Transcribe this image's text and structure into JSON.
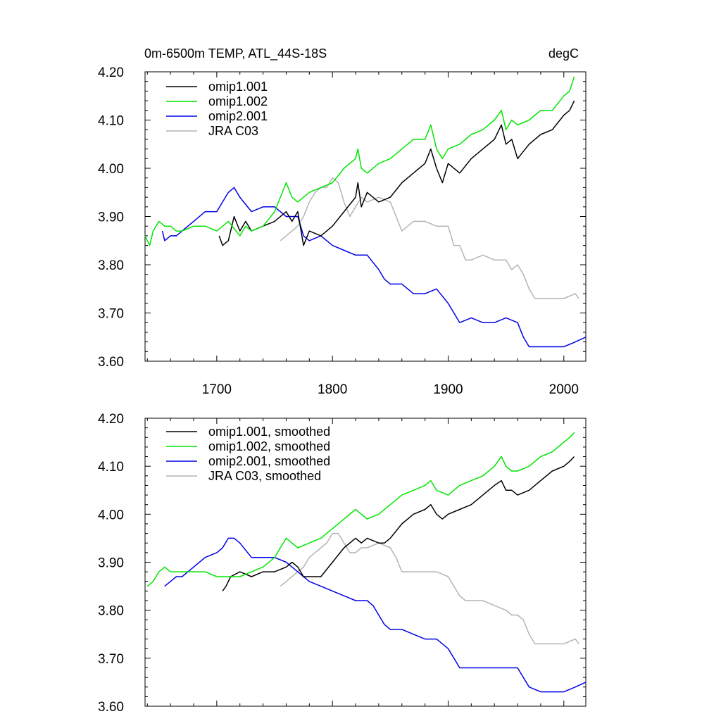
{
  "colors": {
    "omip1_001": "#000000",
    "omip1_002": "#00e600",
    "omip2_001": "#0000e6",
    "jra_c03": "#b4b4b4"
  },
  "chart_data": [
    {
      "type": "line",
      "title_left": "0m-6500m TEMP, ATL_44S-18S",
      "title_right": "degC",
      "xlim": [
        1638,
        2019
      ],
      "ylim": [
        3.6,
        4.2
      ],
      "x_ticks": [
        1700,
        1800,
        1900,
        2000
      ],
      "x_tick_labels": [
        "1700",
        "1800",
        "1900",
        "2000"
      ],
      "y_ticks": [
        3.6,
        3.7,
        3.8,
        3.9,
        4.0,
        4.1,
        4.2
      ],
      "y_tick_labels": [
        "3.60",
        "3.70",
        "3.80",
        "3.90",
        "4.00",
        "4.10",
        "4.20"
      ],
      "legend_position": "top-left",
      "grid": false,
      "series": [
        {
          "name": "omip1.001",
          "color_key": "omip1_001",
          "x": [
            1702,
            1705,
            1710,
            1715,
            1720,
            1725,
            1730,
            1740,
            1750,
            1760,
            1765,
            1770,
            1775,
            1780,
            1790,
            1800,
            1810,
            1820,
            1822,
            1825,
            1830,
            1840,
            1850,
            1860,
            1870,
            1880,
            1885,
            1890,
            1895,
            1900,
            1910,
            1920,
            1930,
            1940,
            1946,
            1950,
            1955,
            1960,
            1970,
            1980,
            1990,
            2000,
            2005,
            2009
          ],
          "y": [
            3.86,
            3.84,
            3.85,
            3.9,
            3.87,
            3.89,
            3.87,
            3.88,
            3.89,
            3.91,
            3.89,
            3.91,
            3.84,
            3.87,
            3.86,
            3.88,
            3.91,
            3.94,
            3.97,
            3.92,
            3.95,
            3.93,
            3.94,
            3.97,
            3.99,
            4.01,
            4.04,
            4.0,
            3.97,
            4.01,
            3.99,
            4.02,
            4.04,
            4.06,
            4.09,
            4.05,
            4.06,
            4.02,
            4.05,
            4.07,
            4.08,
            4.11,
            4.12,
            4.14
          ]
        },
        {
          "name": "omip1.002",
          "color_key": "omip1_002",
          "x": [
            1638,
            1640,
            1642,
            1645,
            1650,
            1655,
            1660,
            1665,
            1670,
            1680,
            1690,
            1700,
            1710,
            1720,
            1725,
            1730,
            1740,
            1750,
            1755,
            1760,
            1765,
            1770,
            1780,
            1790,
            1800,
            1810,
            1820,
            1822,
            1825,
            1830,
            1840,
            1850,
            1860,
            1870,
            1880,
            1885,
            1890,
            1895,
            1900,
            1910,
            1920,
            1930,
            1940,
            1946,
            1950,
            1955,
            1960,
            1970,
            1980,
            1990,
            2000,
            2005,
            2009
          ],
          "y": [
            3.86,
            3.85,
            3.84,
            3.87,
            3.89,
            3.88,
            3.88,
            3.87,
            3.87,
            3.88,
            3.88,
            3.87,
            3.89,
            3.86,
            3.88,
            3.87,
            3.88,
            3.91,
            3.94,
            3.97,
            3.94,
            3.93,
            3.95,
            3.96,
            3.97,
            4.0,
            4.02,
            4.04,
            4.0,
            3.99,
            4.01,
            4.02,
            4.04,
            4.06,
            4.06,
            4.09,
            4.04,
            4.02,
            4.04,
            4.05,
            4.07,
            4.08,
            4.1,
            4.12,
            4.08,
            4.1,
            4.09,
            4.1,
            4.12,
            4.12,
            4.15,
            4.16,
            4.19
          ]
        },
        {
          "name": "omip2.001",
          "color_key": "omip2_001",
          "x": [
            1653,
            1655,
            1660,
            1665,
            1670,
            1680,
            1690,
            1700,
            1705,
            1710,
            1715,
            1720,
            1730,
            1740,
            1750,
            1760,
            1770,
            1775,
            1780,
            1790,
            1800,
            1810,
            1820,
            1830,
            1840,
            1845,
            1850,
            1860,
            1870,
            1880,
            1890,
            1900,
            1905,
            1910,
            1920,
            1930,
            1940,
            1950,
            1960,
            1965,
            1970,
            1980,
            1990,
            2000,
            2010,
            2019
          ],
          "y": [
            3.87,
            3.85,
            3.86,
            3.86,
            3.87,
            3.89,
            3.91,
            3.91,
            3.93,
            3.95,
            3.96,
            3.94,
            3.91,
            3.92,
            3.92,
            3.9,
            3.9,
            3.86,
            3.85,
            3.86,
            3.84,
            3.83,
            3.82,
            3.82,
            3.79,
            3.77,
            3.76,
            3.76,
            3.74,
            3.74,
            3.75,
            3.72,
            3.7,
            3.68,
            3.69,
            3.68,
            3.68,
            3.69,
            3.68,
            3.65,
            3.63,
            3.63,
            3.63,
            3.63,
            3.64,
            3.65
          ]
        },
        {
          "name": "JRA C03",
          "color_key": "jra_c03",
          "x": [
            1755,
            1760,
            1765,
            1770,
            1775,
            1780,
            1785,
            1790,
            1795,
            1800,
            1805,
            1810,
            1815,
            1820,
            1825,
            1830,
            1840,
            1850,
            1860,
            1870,
            1880,
            1890,
            1900,
            1905,
            1910,
            1915,
            1920,
            1930,
            1940,
            1950,
            1955,
            1960,
            1965,
            1970,
            1975,
            1980,
            1990,
            2000,
            2010,
            2013
          ],
          "y": [
            3.85,
            3.86,
            3.87,
            3.88,
            3.9,
            3.93,
            3.95,
            3.96,
            3.96,
            3.98,
            3.97,
            3.93,
            3.9,
            3.92,
            3.94,
            3.93,
            3.94,
            3.93,
            3.87,
            3.89,
            3.89,
            3.88,
            3.88,
            3.84,
            3.84,
            3.81,
            3.81,
            3.82,
            3.81,
            3.81,
            3.79,
            3.8,
            3.78,
            3.75,
            3.73,
            3.73,
            3.73,
            3.73,
            3.74,
            3.73
          ]
        }
      ]
    },
    {
      "type": "line",
      "xlim": [
        1638,
        2019
      ],
      "ylim": [
        3.6,
        4.2
      ],
      "y_ticks": [
        3.6,
        3.7,
        3.8,
        3.9,
        4.0,
        4.1,
        4.2
      ],
      "y_tick_labels": [
        "3.60",
        "3.70",
        "3.80",
        "3.90",
        "4.00",
        "4.10",
        "4.20"
      ],
      "legend_position": "top-left",
      "grid": false,
      "series": [
        {
          "name": "omip1.001, smoothed",
          "color_key": "omip1_001",
          "x": [
            1705,
            1708,
            1712,
            1720,
            1730,
            1740,
            1750,
            1760,
            1765,
            1770,
            1775,
            1780,
            1790,
            1800,
            1810,
            1820,
            1825,
            1830,
            1840,
            1845,
            1850,
            1860,
            1870,
            1880,
            1885,
            1890,
            1895,
            1900,
            1910,
            1920,
            1930,
            1940,
            1946,
            1950,
            1955,
            1960,
            1970,
            1980,
            1990,
            2000,
            2005,
            2009
          ],
          "y": [
            3.84,
            3.85,
            3.87,
            3.88,
            3.87,
            3.88,
            3.88,
            3.89,
            3.9,
            3.89,
            3.87,
            3.87,
            3.87,
            3.9,
            3.93,
            3.95,
            3.94,
            3.95,
            3.94,
            3.94,
            3.95,
            3.98,
            4.0,
            4.01,
            4.02,
            4.0,
            3.99,
            4.0,
            4.01,
            4.02,
            4.04,
            4.06,
            4.07,
            4.05,
            4.05,
            4.04,
            4.05,
            4.07,
            4.09,
            4.1,
            4.11,
            4.12
          ]
        },
        {
          "name": "omip1.002, smoothed",
          "color_key": "omip1_002",
          "x": [
            1640,
            1645,
            1650,
            1655,
            1660,
            1670,
            1680,
            1690,
            1700,
            1710,
            1720,
            1730,
            1740,
            1750,
            1755,
            1760,
            1765,
            1770,
            1780,
            1790,
            1800,
            1810,
            1820,
            1825,
            1830,
            1840,
            1850,
            1860,
            1870,
            1880,
            1885,
            1890,
            1900,
            1910,
            1920,
            1930,
            1940,
            1946,
            1950,
            1955,
            1960,
            1970,
            1980,
            1990,
            2000,
            2005,
            2009
          ],
          "y": [
            3.85,
            3.86,
            3.88,
            3.89,
            3.88,
            3.88,
            3.88,
            3.88,
            3.87,
            3.87,
            3.87,
            3.88,
            3.89,
            3.91,
            3.93,
            3.95,
            3.94,
            3.93,
            3.94,
            3.95,
            3.97,
            3.99,
            4.01,
            4.0,
            3.99,
            4.0,
            4.02,
            4.04,
            4.05,
            4.06,
            4.07,
            4.05,
            4.04,
            4.06,
            4.07,
            4.08,
            4.1,
            4.12,
            4.1,
            4.09,
            4.09,
            4.1,
            4.12,
            4.13,
            4.15,
            4.16,
            4.17
          ]
        },
        {
          "name": "omip2.001, smoothed",
          "color_key": "omip2_001",
          "x": [
            1655,
            1660,
            1665,
            1670,
            1680,
            1690,
            1700,
            1705,
            1710,
            1715,
            1720,
            1730,
            1740,
            1750,
            1760,
            1765,
            1770,
            1775,
            1780,
            1790,
            1800,
            1810,
            1820,
            1830,
            1835,
            1840,
            1845,
            1850,
            1860,
            1870,
            1880,
            1890,
            1900,
            1905,
            1910,
            1920,
            1930,
            1940,
            1950,
            1960,
            1965,
            1970,
            1980,
            1990,
            2000,
            2010,
            2019
          ],
          "y": [
            3.85,
            3.86,
            3.87,
            3.87,
            3.89,
            3.91,
            3.92,
            3.93,
            3.95,
            3.95,
            3.94,
            3.91,
            3.91,
            3.91,
            3.9,
            3.89,
            3.88,
            3.87,
            3.86,
            3.85,
            3.84,
            3.83,
            3.82,
            3.82,
            3.81,
            3.79,
            3.77,
            3.76,
            3.76,
            3.75,
            3.74,
            3.74,
            3.72,
            3.7,
            3.68,
            3.68,
            3.68,
            3.68,
            3.68,
            3.68,
            3.66,
            3.64,
            3.63,
            3.63,
            3.63,
            3.64,
            3.65
          ]
        },
        {
          "name": "JRA C03, smoothed",
          "color_key": "jra_c03",
          "x": [
            1755,
            1760,
            1765,
            1770,
            1775,
            1780,
            1785,
            1790,
            1795,
            1800,
            1805,
            1810,
            1815,
            1820,
            1825,
            1830,
            1840,
            1850,
            1855,
            1860,
            1870,
            1880,
            1890,
            1900,
            1905,
            1910,
            1915,
            1920,
            1930,
            1940,
            1950,
            1955,
            1960,
            1965,
            1970,
            1975,
            1980,
            1990,
            2000,
            2010,
            2013
          ],
          "y": [
            3.85,
            3.86,
            3.87,
            3.88,
            3.89,
            3.91,
            3.92,
            3.93,
            3.94,
            3.96,
            3.96,
            3.94,
            3.92,
            3.92,
            3.93,
            3.93,
            3.94,
            3.93,
            3.91,
            3.88,
            3.88,
            3.88,
            3.88,
            3.87,
            3.85,
            3.83,
            3.82,
            3.82,
            3.82,
            3.81,
            3.8,
            3.79,
            3.79,
            3.78,
            3.75,
            3.73,
            3.73,
            3.73,
            3.73,
            3.74,
            3.73
          ]
        }
      ]
    }
  ]
}
